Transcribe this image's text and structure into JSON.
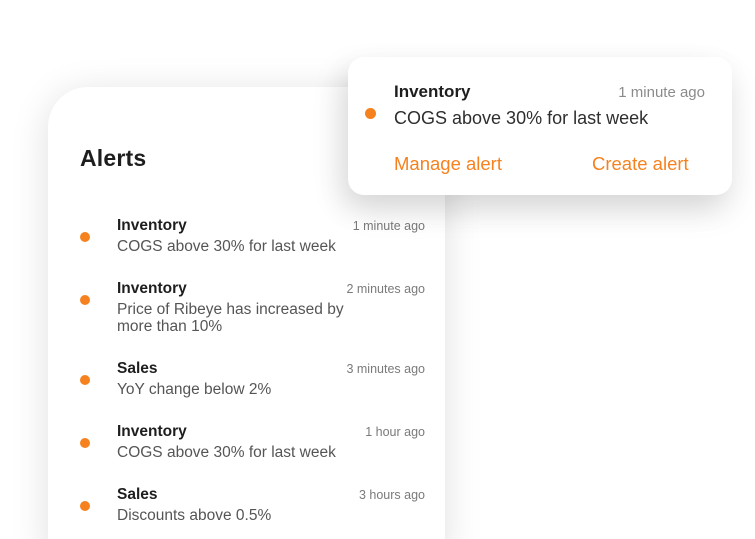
{
  "colors": {
    "accent": "#F5821F",
    "title": "#1E1E1E",
    "message": "#555555",
    "timestamp": "#7A7A7A"
  },
  "panel": {
    "title": "Alerts",
    "alerts": [
      {
        "category": "Inventory",
        "time": "1 minute ago",
        "message": "COGS above 30% for last week"
      },
      {
        "category": "Inventory",
        "time": "2 minutes ago",
        "message": "Price of Ribeye has increased by more than 10%"
      },
      {
        "category": "Sales",
        "time": "3 minutes ago",
        "message": "YoY change below 2%"
      },
      {
        "category": "Inventory",
        "time": "1 hour ago",
        "message": "COGS above 30% for last week"
      },
      {
        "category": "Sales",
        "time": "3 hours ago",
        "message": "Discounts above 0.5%"
      }
    ]
  },
  "popup": {
    "category": "Inventory",
    "time": "1 minute ago",
    "message": "COGS above 30% for last week",
    "actions": [
      {
        "label": "Manage alert"
      },
      {
        "label": "Create alert"
      }
    ]
  }
}
